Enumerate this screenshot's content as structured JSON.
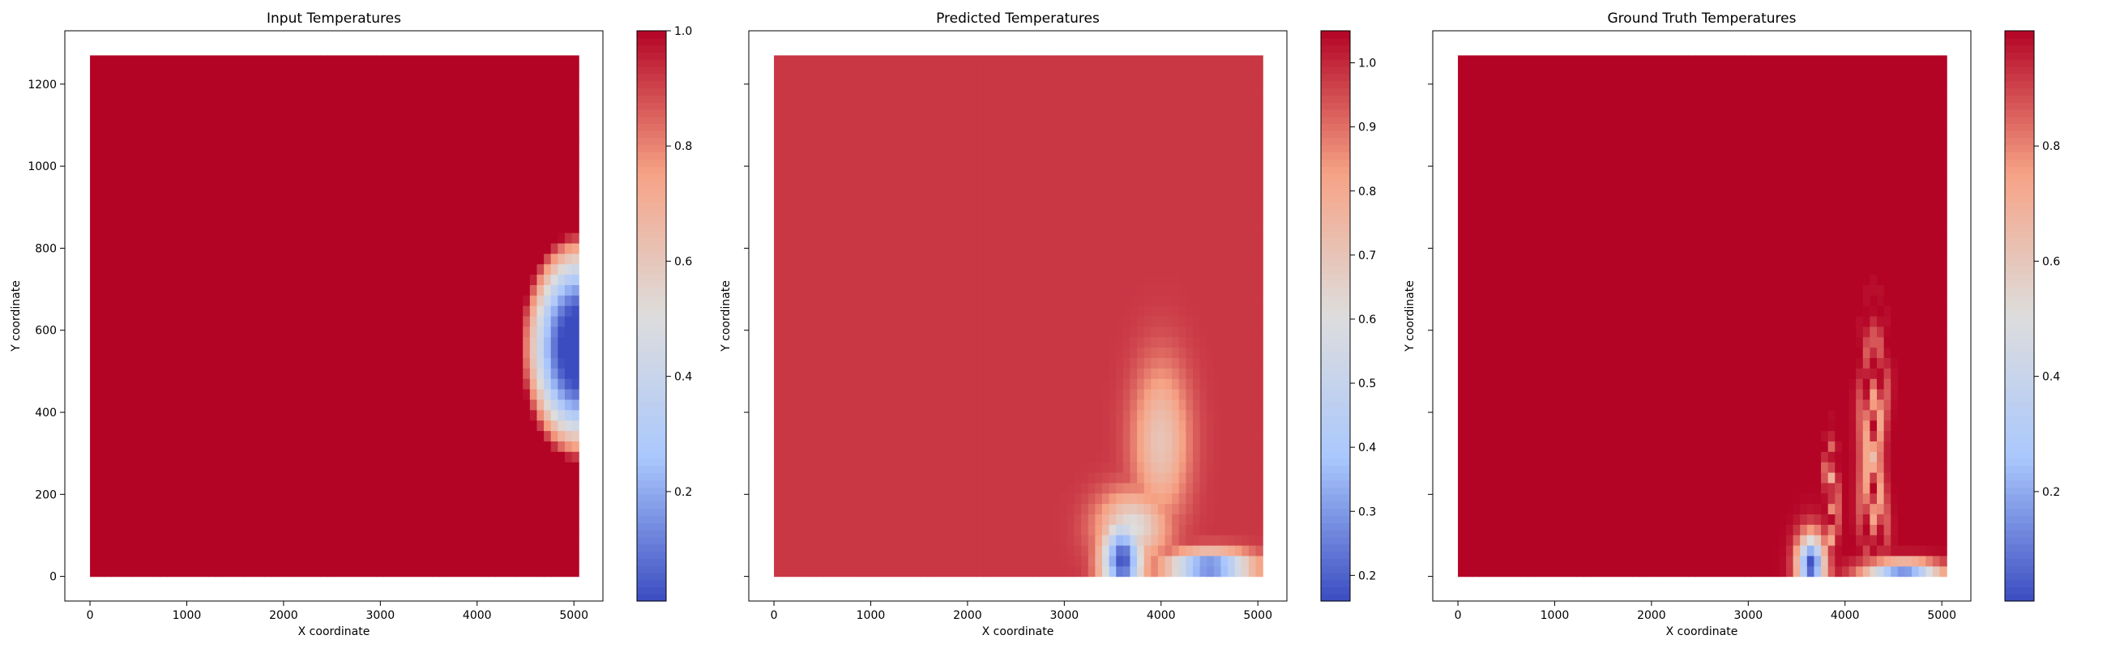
{
  "figure": {
    "panels": [
      {
        "title": "Input Temperatures",
        "xlabel": "X coordinate",
        "ylabel": "Y coordinate",
        "show_y_tick_labels": true,
        "colorbar_ticks": [
          0.2,
          0.4,
          0.6,
          0.8,
          1.0
        ],
        "colorbar_tick_labels": [
          "0.2",
          "0.4",
          "0.6",
          "0.8",
          "1.0"
        ]
      },
      {
        "title": "Predicted Temperatures",
        "xlabel": "X coordinate",
        "ylabel": "Y coordinate",
        "show_y_tick_labels": false,
        "colorbar_ticks": [
          0.2,
          0.3,
          0.4,
          0.5,
          0.6,
          0.7,
          0.8,
          0.9,
          1.0
        ],
        "colorbar_tick_labels": [
          "0.2",
          "0.3",
          "0.4",
          "0.5",
          "0.6",
          "0.7",
          "0.8",
          "0.9",
          "1.0"
        ]
      },
      {
        "title": "Ground Truth Temperatures",
        "xlabel": "X coordinate",
        "ylabel": "Y coordinate",
        "show_y_tick_labels": false,
        "colorbar_ticks": [
          0.2,
          0.4,
          0.6,
          0.8
        ],
        "colorbar_tick_labels": [
          "0.2",
          "0.4",
          "0.6",
          "0.8"
        ]
      }
    ],
    "x_tick_labels": [
      "0",
      "1000",
      "2000",
      "3000",
      "4000",
      "5000"
    ],
    "y_tick_labels": [
      "0",
      "200",
      "400",
      "600",
      "800",
      "1000",
      "1200"
    ],
    "colormap": [
      "#3b4cc0",
      "#aac7fd",
      "#dddddd",
      "#f6a385",
      "#b40426"
    ]
  },
  "chart_data": [
    {
      "type": "heatmap",
      "title": "Input Temperatures",
      "xlabel": "X coordinate",
      "ylabel": "Y coordinate",
      "xlim": [
        -260,
        5300
      ],
      "ylim": [
        -60,
        1330
      ],
      "xticks": [
        0,
        1000,
        2000,
        3000,
        4000,
        5000
      ],
      "yticks": [
        0,
        200,
        400,
        600,
        800,
        1000,
        1200
      ],
      "x_range": [
        0,
        5050
      ],
      "y_range": [
        0,
        1270
      ],
      "colorbar_range": [
        0.01,
        1.0
      ],
      "colorbar_ticks": [
        0.2,
        0.4,
        0.6,
        0.8,
        1.0
      ],
      "background_value": 1.0,
      "features": [
        {
          "kind": "cold_half_disc",
          "center_x": 5050,
          "center_y": 560,
          "radius_x": 600,
          "radius_y": 280,
          "min_value": 0.01,
          "plateau_fraction": 0.3,
          "power": 1.4
        }
      ]
    },
    {
      "type": "heatmap",
      "title": "Predicted Temperatures",
      "xlabel": "X coordinate",
      "ylabel": "Y coordinate",
      "xlim": [
        -260,
        5300
      ],
      "ylim": [
        -60,
        1330
      ],
      "xticks": [
        0,
        1000,
        2000,
        3000,
        4000,
        5000
      ],
      "yticks": [
        0,
        200,
        400,
        600,
        800,
        1000,
        1200
      ],
      "x_range": [
        0,
        5050
      ],
      "y_range": [
        0,
        1270
      ],
      "colorbar_range": [
        0.16,
        1.05
      ],
      "colorbar_ticks": [
        0.2,
        0.3,
        0.4,
        0.5,
        0.6,
        0.7,
        0.8,
        0.9,
        1.0
      ],
      "background_value": 0.98,
      "features": [
        {
          "kind": "warm_plume",
          "center_x": 4000,
          "center_y": 330,
          "radius_x": 400,
          "radius_y": 260,
          "min_value": 0.7
        },
        {
          "kind": "warm_plume",
          "center_x": 3700,
          "center_y": 120,
          "radius_x": 500,
          "radius_y": 120,
          "min_value": 0.6
        },
        {
          "kind": "cold_layer",
          "center_x": 3600,
          "center_y": 40,
          "radius_x": 300,
          "radius_y": 140,
          "min_value": 0.17
        },
        {
          "kind": "cold_layer",
          "center_x": 4500,
          "center_y": 25,
          "radius_x": 600,
          "radius_y": 50,
          "min_value": 0.2
        }
      ]
    },
    {
      "type": "heatmap",
      "title": "Ground Truth Temperatures",
      "xlabel": "X coordinate",
      "ylabel": "Y coordinate",
      "xlim": [
        -260,
        5300
      ],
      "ylim": [
        -60,
        1330
      ],
      "xticks": [
        0,
        1000,
        2000,
        3000,
        4000,
        5000
      ],
      "yticks": [
        0,
        200,
        400,
        600,
        800,
        1000,
        1200
      ],
      "x_range": [
        0,
        5050
      ],
      "y_range": [
        0,
        1270
      ],
      "colorbar_range": [
        0.01,
        1.0
      ],
      "colorbar_ticks": [
        0.2,
        0.4,
        0.6,
        0.8
      ],
      "background_value": 1.0,
      "features": [
        {
          "kind": "spiral_vortex",
          "center_x": 4300,
          "center_y": 290,
          "radius_x": 250,
          "radius_y": 450,
          "min_value": 0.6
        },
        {
          "kind": "small_vortex",
          "center_x": 3850,
          "center_y": 170,
          "radius_x": 120,
          "radius_y": 230,
          "min_value": 0.55
        },
        {
          "kind": "cold_layer",
          "center_x": 3650,
          "center_y": 30,
          "radius_x": 200,
          "radius_y": 100,
          "min_value": 0.01
        },
        {
          "kind": "cold_layer",
          "center_x": 4600,
          "center_y": 10,
          "radius_x": 550,
          "radius_y": 40,
          "min_value": 0.15
        }
      ]
    }
  ]
}
